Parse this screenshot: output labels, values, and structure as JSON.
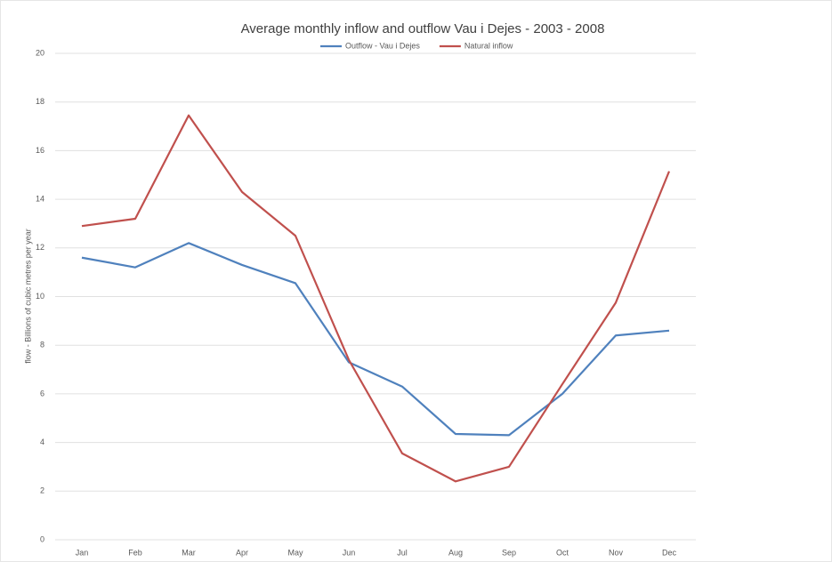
{
  "chart_data": {
    "type": "line",
    "title": "Average monthly inflow and outflow Vau i Dejes - 2003 - 2008",
    "y_label": "flow - Billions of cubic metres per year",
    "categories": [
      "Jan",
      "Feb",
      "Mar",
      "Apr",
      "May",
      "Jun",
      "Jul",
      "Aug",
      "Sep",
      "Oct",
      "Nov",
      "Dec"
    ],
    "series": [
      {
        "name": "Outflow - Vau i Dejes",
        "color": "#4f81bd",
        "values": [
          11.6,
          11.2,
          12.2,
          11.3,
          10.55,
          7.3,
          6.3,
          4.35,
          4.3,
          6.0,
          8.4,
          8.6
        ]
      },
      {
        "name": "Natural inflow",
        "color": "#c0504d",
        "values": [
          12.9,
          13.2,
          17.45,
          14.3,
          12.5,
          7.4,
          3.55,
          2.4,
          3.0,
          6.4,
          9.75,
          15.15
        ]
      }
    ],
    "ylim": [
      0,
      20
    ],
    "yticks": [
      0,
      2,
      4,
      6,
      8,
      10,
      12,
      14,
      16,
      18,
      20
    ],
    "grid": true,
    "legend": "top"
  }
}
